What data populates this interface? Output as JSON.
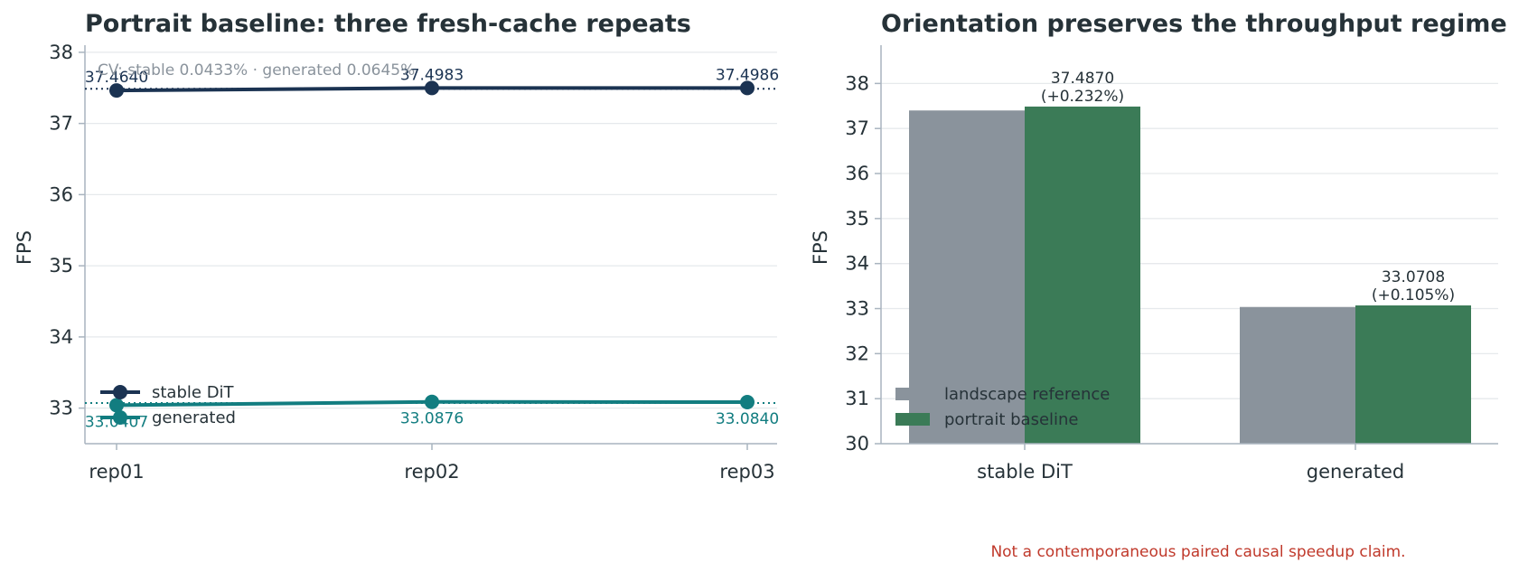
{
  "colors": {
    "stable": "#1b3352",
    "generated": "#127d80",
    "landscape": "#8a939c",
    "portrait": "#3b7b57",
    "text": "#263238",
    "note": "#c0392b",
    "cv": "#8a939c"
  },
  "chart_data": [
    {
      "type": "line",
      "title": "Portrait baseline: three fresh-cache repeats",
      "xlabel": "",
      "ylabel": "FPS",
      "categories": [
        "rep01",
        "rep02",
        "rep03"
      ],
      "ylim": [
        32.5,
        38.1
      ],
      "yticks": [
        33,
        34,
        35,
        36,
        37,
        38
      ],
      "grid": true,
      "legend_position": "lower-left",
      "annotation": "CV: stable 0.0433% · generated 0.0645%",
      "series": [
        {
          "name": "stable DiT",
          "values": [
            37.464,
            37.4983,
            37.4986
          ],
          "labels": [
            "37.4640",
            "37.4983",
            "37.4986"
          ],
          "mean": 37.487
        },
        {
          "name": "generated",
          "values": [
            33.0407,
            33.0876,
            33.084
          ],
          "labels": [
            "33.0407",
            "33.0876",
            "33.0840"
          ],
          "mean": 33.0708
        }
      ]
    },
    {
      "type": "bar",
      "title": "Orientation preserves the throughput regime",
      "xlabel": "",
      "ylabel": "FPS",
      "categories": [
        "stable DiT",
        "generated"
      ],
      "ylim": [
        30,
        38.85
      ],
      "yticks": [
        30,
        31,
        32,
        33,
        34,
        35,
        36,
        37,
        38
      ],
      "grid": true,
      "legend_position": "lower-left",
      "series": [
        {
          "name": "landscape reference",
          "values": [
            37.4,
            33.036
          ]
        },
        {
          "name": "portrait baseline",
          "values": [
            37.487,
            33.0708
          ]
        }
      ],
      "bar_labels": [
        {
          "value": "37.4870",
          "delta": "(+0.232%)"
        },
        {
          "value": "33.0708",
          "delta": "(+0.105%)"
        }
      ]
    }
  ],
  "footnote": "Not a contemporaneous paired causal speedup claim."
}
